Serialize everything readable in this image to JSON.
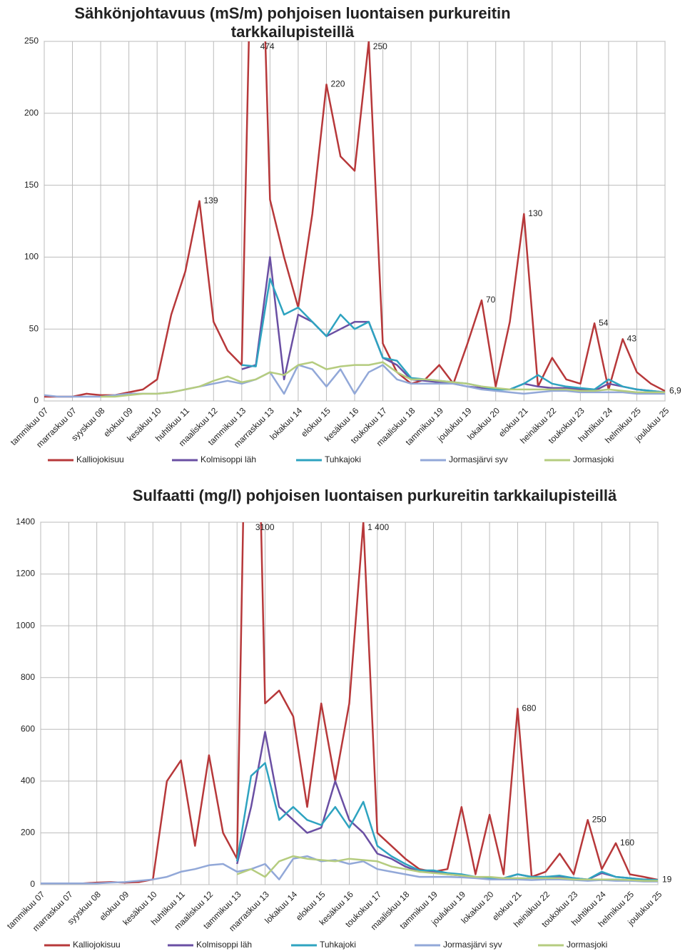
{
  "chart_data": [
    {
      "type": "line",
      "title": "Sähkönjohtavuus (mS/m) pohjoisen luontaisen purkureitin tarkkailupisteillä",
      "categories": [
        "tammikuu 07",
        null,
        "marraskuu 07",
        null,
        "syyskuu 08",
        null,
        "elokuu 09",
        null,
        "kesäkuu 10",
        null,
        "huhtikuu 11",
        null,
        "maaliskuu 12",
        null,
        "tammikuu 13",
        null,
        "marraskuu 13",
        null,
        "lokakuu 14",
        null,
        "elokuu 15",
        null,
        "kesäkuu 16",
        null,
        "toukokuu 17",
        null,
        "maaliskuu 18",
        null,
        "tammikuu 19",
        null,
        "joulukuu 19",
        null,
        "lokakuu 20",
        null,
        "elokuu 21",
        null,
        "heinäkuu 22",
        null,
        "toukokuu 23",
        null,
        "huhtikuu 24",
        null,
        "helmikuu 25",
        null,
        "joulukuu 25"
      ],
      "ylim": [
        0,
        250
      ],
      "yticks": [
        0,
        50,
        100,
        150,
        200,
        250
      ],
      "grid": true,
      "series": [
        {
          "name": "Kalliojokisuu",
          "color": "#b7383a",
          "values": [
            3,
            3,
            3,
            5,
            4,
            4,
            6,
            8,
            15,
            60,
            90,
            139,
            55,
            35,
            25,
            474,
            140,
            100,
            65,
            130,
            220,
            170,
            160,
            250,
            40,
            20,
            12,
            15,
            25,
            12,
            40,
            70,
            10,
            55,
            130,
            10,
            30,
            15,
            12,
            54,
            8,
            43,
            20,
            12,
            6.9
          ],
          "value_labels": [
            null,
            null,
            null,
            null,
            null,
            null,
            null,
            null,
            null,
            null,
            null,
            "139",
            null,
            null,
            null,
            "474",
            null,
            null,
            null,
            null,
            "220",
            null,
            null,
            "250",
            null,
            null,
            null,
            null,
            null,
            null,
            null,
            "70",
            null,
            null,
            "130",
            null,
            null,
            null,
            null,
            "54",
            null,
            "43",
            null,
            null,
            "6,9"
          ]
        },
        {
          "name": "Kolmisoppi läh",
          "color": "#6a4fa3",
          "values": [
            null,
            null,
            null,
            null,
            null,
            null,
            null,
            null,
            null,
            null,
            null,
            null,
            null,
            null,
            22,
            25,
            100,
            15,
            60,
            55,
            45,
            50,
            55,
            55,
            30,
            25,
            15,
            14,
            13,
            12,
            10,
            9,
            8,
            8,
            12,
            10,
            9,
            9,
            8,
            7,
            12,
            10,
            8,
            7,
            6
          ]
        },
        {
          "name": "Tuhkajoki",
          "color": "#2ea3c0",
          "values": [
            null,
            null,
            null,
            null,
            null,
            null,
            null,
            null,
            null,
            null,
            null,
            null,
            null,
            null,
            25,
            24,
            85,
            60,
            65,
            55,
            45,
            60,
            50,
            55,
            30,
            28,
            16,
            15,
            14,
            13,
            12,
            10,
            8,
            8,
            12,
            18,
            12,
            10,
            9,
            8,
            15,
            10,
            8,
            7,
            6
          ]
        },
        {
          "name": "Jormasjärvi syv",
          "color": "#92a8d8",
          "values": [
            4,
            3,
            3,
            3,
            3,
            4,
            5,
            5,
            5,
            6,
            8,
            10,
            12,
            14,
            12,
            15,
            20,
            5,
            25,
            22,
            10,
            22,
            5,
            20,
            25,
            15,
            12,
            12,
            12,
            12,
            10,
            8,
            7,
            6,
            5,
            6,
            7,
            7,
            6,
            6,
            6,
            6,
            5,
            5,
            5
          ]
        },
        {
          "name": "Jormasjoki",
          "color": "#b5cc7f",
          "values": [
            null,
            null,
            null,
            null,
            3,
            3,
            4,
            5,
            5,
            6,
            8,
            10,
            14,
            17,
            13,
            15,
            20,
            18,
            25,
            27,
            22,
            24,
            25,
            25,
            27,
            20,
            15,
            15,
            14,
            13,
            12,
            10,
            9,
            8,
            8,
            8,
            8,
            8,
            7,
            7,
            8,
            7,
            6,
            6,
            6
          ]
        }
      ]
    },
    {
      "type": "line",
      "title": "Sulfaatti (mg/l) pohjoisen luontaisen purkureitin tarkkailupisteillä",
      "categories": [
        "tammikuu 07",
        null,
        "marraskuu 07",
        null,
        "syyskuu 08",
        null,
        "elokuu 09",
        null,
        "kesäkuu 10",
        null,
        "huhtikuu 11",
        null,
        "maaliskuu 12",
        null,
        "tammikuu 13",
        null,
        "marraskuu 13",
        null,
        "lokakuu 14",
        null,
        "elokuu 15",
        null,
        "kesäkuu 16",
        null,
        "toukokuu 17",
        null,
        "maaliskuu 18",
        null,
        "tammikuu 19",
        null,
        "joulukuu 19",
        null,
        "lokakuu 20",
        null,
        "elokuu 21",
        null,
        "heinäkuu 22",
        null,
        "toukokuu 23",
        null,
        "huhtikuu 24",
        null,
        "helmikuu 25",
        null,
        "joulukuu 25"
      ],
      "ylim": [
        0,
        1400
      ],
      "yticks": [
        0,
        200,
        400,
        600,
        800,
        1000,
        1200,
        1400
      ],
      "grid": true,
      "series": [
        {
          "name": "Kalliojokisuu",
          "color": "#b7383a",
          "values": [
            5,
            5,
            5,
            5,
            8,
            10,
            8,
            10,
            20,
            400,
            480,
            150,
            500,
            200,
            100,
            3100,
            700,
            750,
            650,
            300,
            700,
            400,
            700,
            1400,
            200,
            150,
            100,
            60,
            50,
            60,
            300,
            40,
            270,
            40,
            680,
            30,
            50,
            120,
            40,
            250,
            60,
            160,
            40,
            30,
            19
          ],
          "value_labels": [
            null,
            null,
            null,
            null,
            null,
            null,
            null,
            null,
            null,
            null,
            null,
            null,
            null,
            null,
            null,
            "3100",
            null,
            null,
            null,
            null,
            null,
            null,
            null,
            "1 400",
            null,
            null,
            null,
            null,
            null,
            null,
            null,
            null,
            null,
            null,
            "680",
            null,
            null,
            null,
            null,
            "250",
            null,
            "160",
            null,
            null,
            "19"
          ]
        },
        {
          "name": "Kolmisoppi läh",
          "color": "#6a4fa3",
          "values": [
            null,
            null,
            null,
            null,
            null,
            null,
            null,
            null,
            null,
            null,
            null,
            null,
            null,
            null,
            80,
            300,
            590,
            300,
            250,
            200,
            220,
            400,
            250,
            200,
            120,
            100,
            70,
            50,
            50,
            40,
            35,
            30,
            25,
            25,
            40,
            30,
            30,
            30,
            25,
            20,
            45,
            30,
            25,
            20,
            18
          ]
        },
        {
          "name": "Tuhkajoki",
          "color": "#2ea3c0",
          "values": [
            null,
            null,
            null,
            null,
            null,
            null,
            null,
            null,
            null,
            null,
            null,
            null,
            null,
            null,
            90,
            420,
            470,
            250,
            300,
            250,
            230,
            300,
            220,
            320,
            150,
            110,
            80,
            55,
            55,
            45,
            40,
            30,
            25,
            25,
            40,
            30,
            30,
            35,
            25,
            20,
            50,
            30,
            25,
            20,
            18
          ]
        },
        {
          "name": "Jormasjärvi syv",
          "color": "#92a8d8",
          "values": [
            5,
            5,
            5,
            5,
            5,
            8,
            10,
            15,
            20,
            30,
            50,
            60,
            75,
            80,
            50,
            60,
            80,
            20,
            100,
            110,
            90,
            95,
            80,
            90,
            60,
            50,
            40,
            30,
            30,
            30,
            28,
            25,
            20,
            20,
            20,
            18,
            20,
            20,
            18,
            15,
            18,
            15,
            15,
            12,
            12
          ]
        },
        {
          "name": "Jormasjoki",
          "color": "#b5cc7f",
          "values": [
            null,
            null,
            null,
            null,
            null,
            null,
            null,
            null,
            null,
            null,
            null,
            null,
            null,
            null,
            40,
            60,
            30,
            90,
            110,
            100,
            95,
            90,
            100,
            95,
            90,
            70,
            60,
            50,
            45,
            40,
            35,
            30,
            30,
            25,
            25,
            25,
            25,
            25,
            20,
            20,
            20,
            20,
            18,
            15,
            15
          ]
        }
      ]
    }
  ]
}
